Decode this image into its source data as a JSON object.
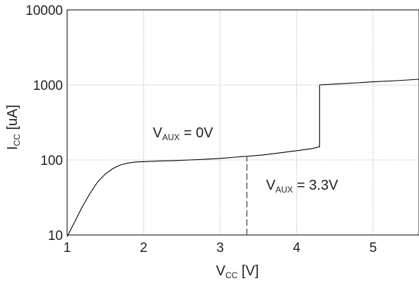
{
  "chart_data": {
    "type": "line",
    "title": "",
    "xlabel": {
      "main": "V",
      "sub": "CC",
      "unit": " [V]"
    },
    "ylabel": {
      "main": "I",
      "sub": "CC",
      "unit": " [uA]"
    },
    "xscale": "linear",
    "yscale": "log",
    "xlim": [
      1,
      5.6
    ],
    "ylim": [
      10,
      10000
    ],
    "grid": true,
    "xticks": [
      1,
      2,
      3,
      4,
      5
    ],
    "xtick_labels": [
      "1",
      "2",
      "3",
      "4",
      "5"
    ],
    "yticks": [
      10,
      100,
      1000,
      10000
    ],
    "ytick_labels": [
      "10",
      "100",
      "1000",
      "10000"
    ],
    "series": [
      {
        "x": [
          1.0,
          1.1,
          1.2,
          1.3,
          1.4,
          1.5,
          1.6,
          1.7,
          1.8,
          1.9,
          2.0,
          2.2,
          2.4,
          2.6,
          2.8,
          3.0,
          3.2,
          3.4,
          3.6,
          3.8,
          4.0,
          4.2,
          4.3,
          4.3,
          4.6,
          5.0,
          5.3,
          5.6
        ],
        "y": [
          9.5,
          15,
          24,
          36,
          51,
          65,
          77,
          86,
          91,
          94,
          95,
          97,
          98,
          100,
          102,
          105,
          109,
          113,
          118,
          125,
          133,
          142,
          150,
          1000,
          1040,
          1100,
          1140,
          1190
        ]
      }
    ],
    "markers": [
      {
        "style": "dashed",
        "x": 3.35,
        "y_from": 10,
        "y_to": 112
      }
    ],
    "annotations": [
      {
        "main": "V",
        "sub": "AUX",
        "rest": " = 0V",
        "x": 2.12,
        "y": 200
      },
      {
        "main": "V",
        "sub": "AUX",
        "rest": " = 3.3V",
        "x": 3.6,
        "y": 40
      }
    ]
  }
}
